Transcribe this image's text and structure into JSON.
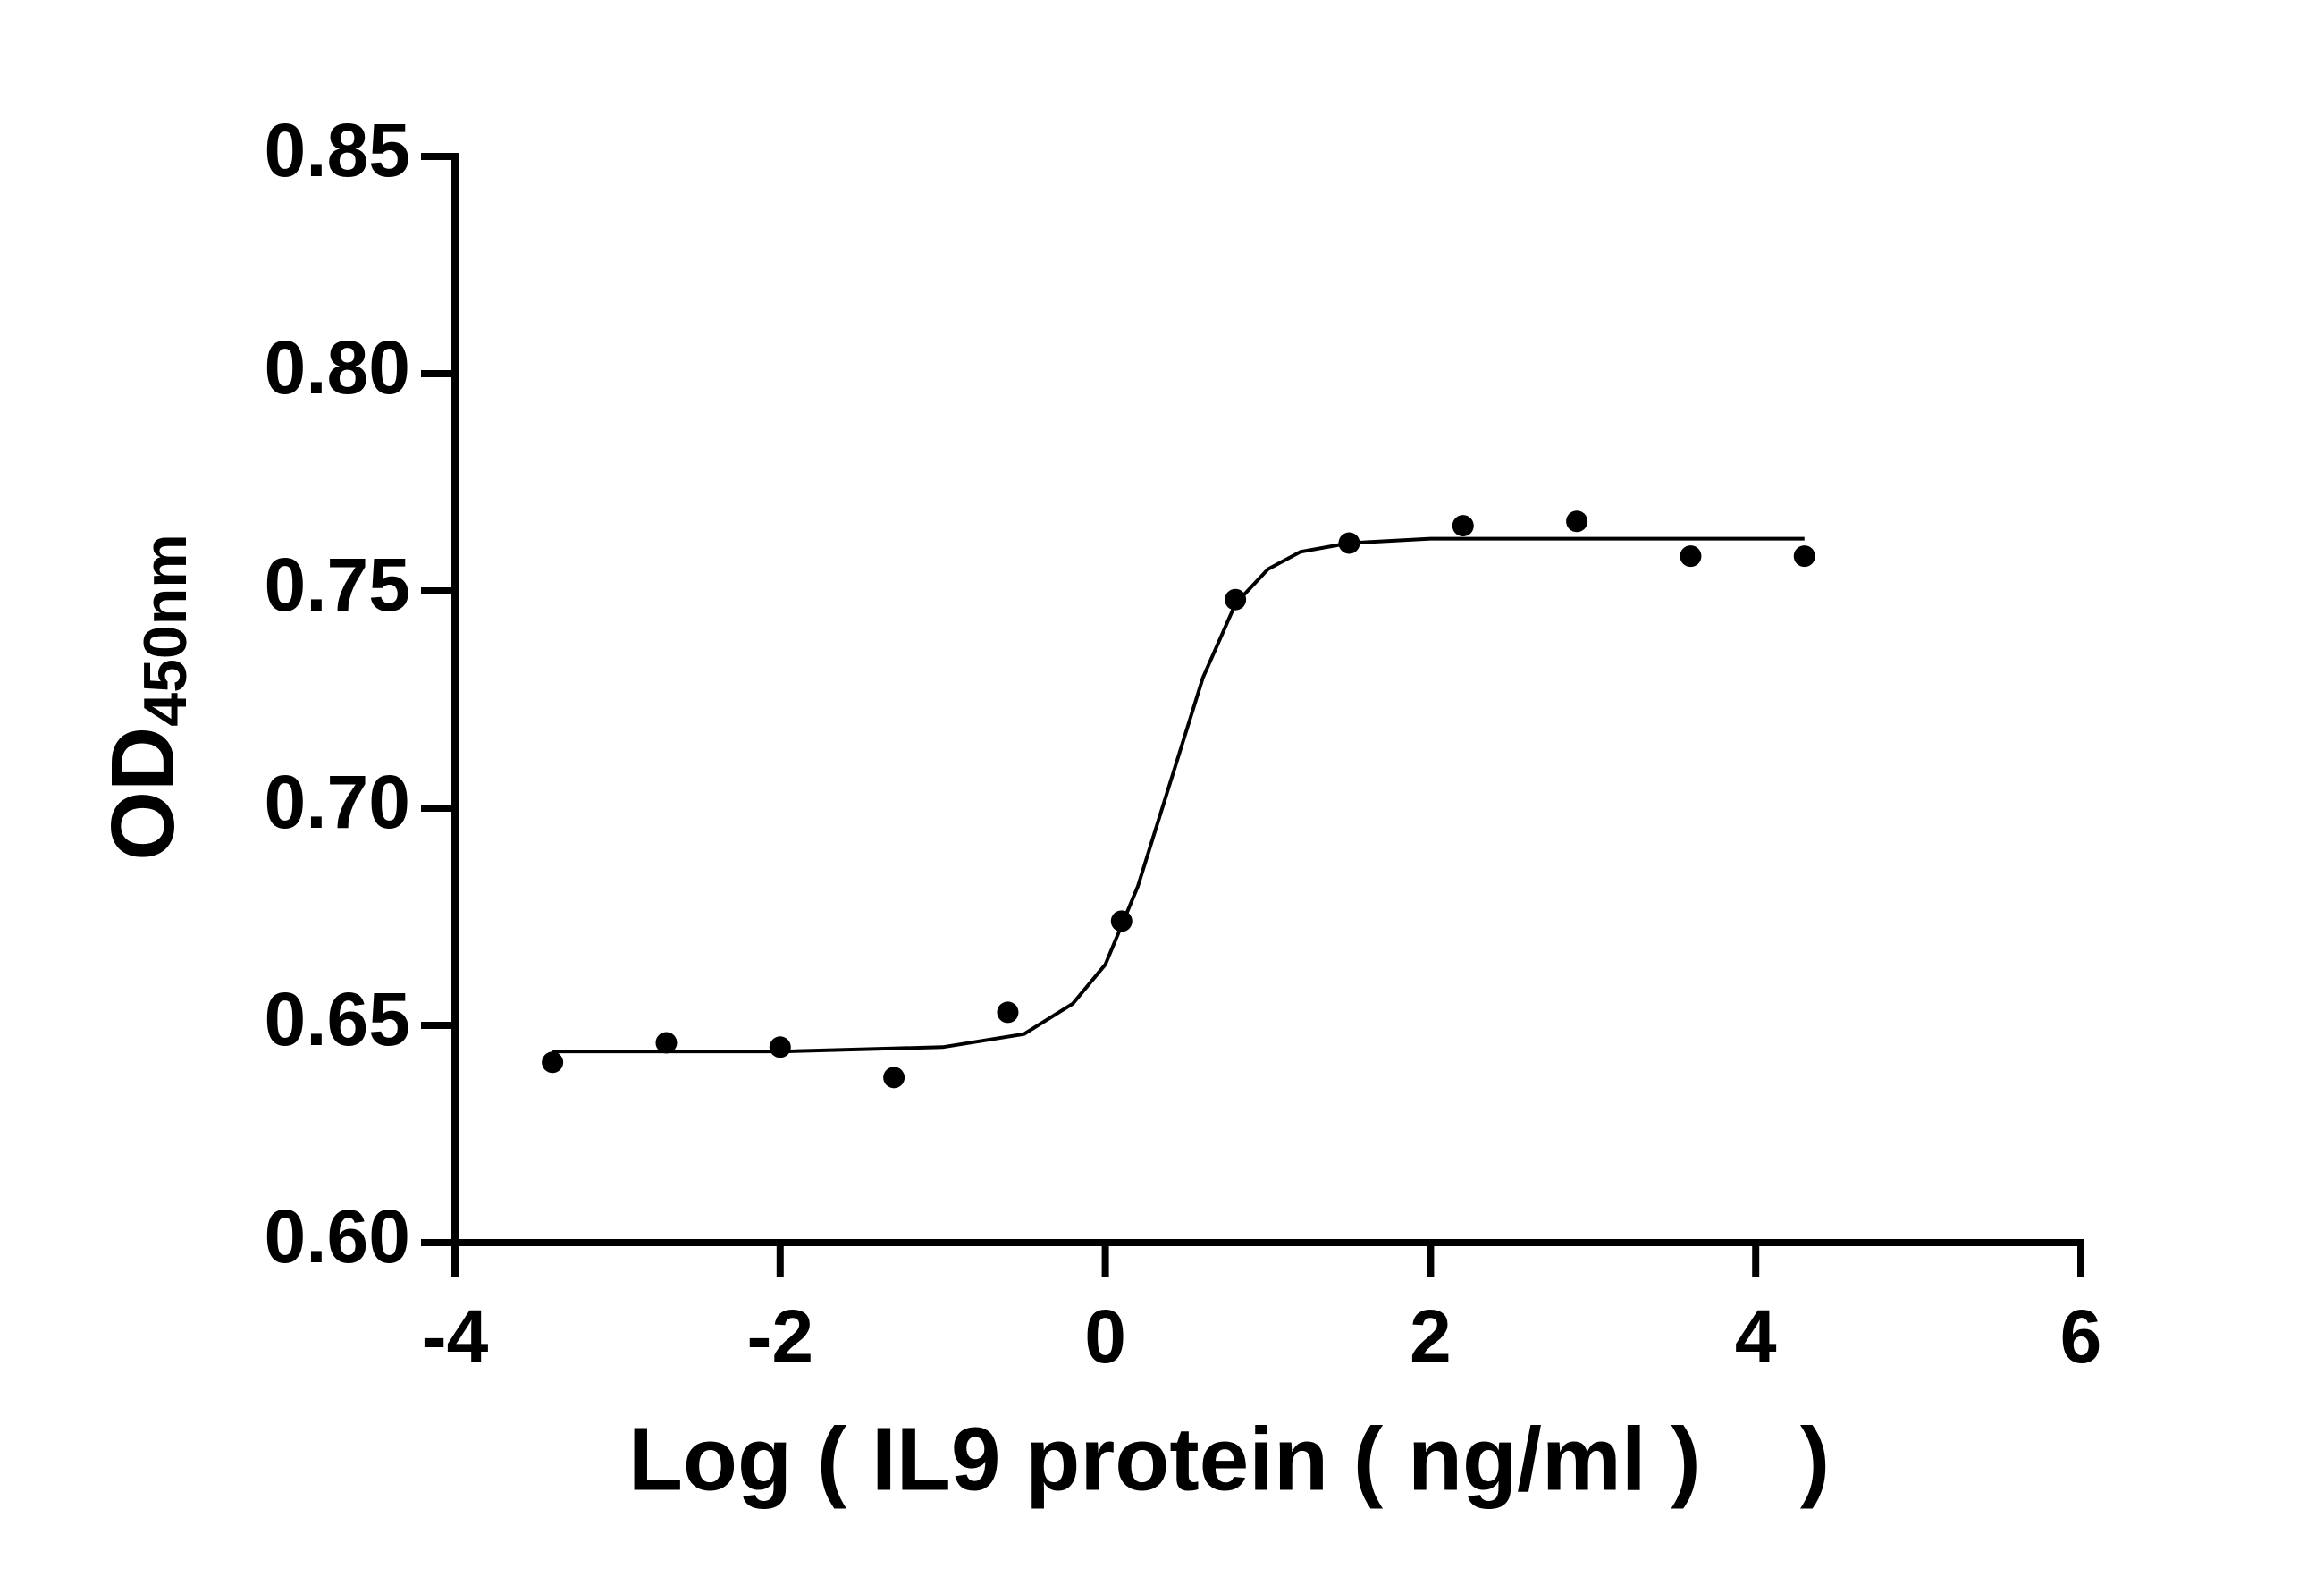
{
  "chart_data": {
    "type": "scatter",
    "xlabel": "Log ( IL9 protein ( ng/ml )    )",
    "ylabel": "OD",
    "ylabel_sub": "450nm",
    "xlim": [
      -4,
      6
    ],
    "xticks": [
      -4,
      -2,
      0,
      2,
      4,
      6
    ],
    "ylim": [
      0.6,
      0.85
    ],
    "yticks": [
      {
        "value": 0.6,
        "label": "0.60"
      },
      0.65,
      {
        "value": 0.7,
        "label": "0.70"
      },
      0.75,
      {
        "value": 0.8,
        "label": "0.80"
      },
      0.85
    ],
    "series": [
      {
        "type": "scatter",
        "color": "#000000",
        "x": [
          -3.4,
          -2.7,
          -2.0,
          -1.3,
          -0.6,
          0.1,
          0.8,
          1.5,
          2.2,
          2.9,
          3.6,
          4.3
        ],
        "values": [
          0.6415,
          0.646,
          0.645,
          0.638,
          0.653,
          0.674,
          0.748,
          0.761,
          0.765,
          0.766,
          0.758,
          0.758
        ]
      },
      {
        "type": "line",
        "color": "#000000",
        "x": [
          -3.4,
          -2.0,
          -1.0,
          -0.5,
          -0.2,
          0.0,
          0.2,
          0.4,
          0.6,
          0.8,
          1.0,
          1.2,
          1.5,
          2.0,
          4.3
        ],
        "values": [
          0.644,
          0.644,
          0.645,
          0.648,
          0.655,
          0.664,
          0.682,
          0.706,
          0.73,
          0.747,
          0.755,
          0.759,
          0.761,
          0.762,
          0.762
        ]
      }
    ]
  }
}
